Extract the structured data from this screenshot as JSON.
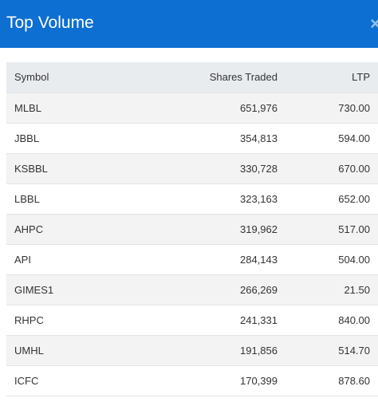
{
  "header": {
    "title": "Top Volume",
    "close_label": "×"
  },
  "table": {
    "columns": [
      "Symbol",
      "Shares Traded",
      "LTP"
    ],
    "rows": [
      {
        "symbol": "MLBL",
        "shares": "651,976",
        "ltp": "730.00"
      },
      {
        "symbol": "JBBL",
        "shares": "354,813",
        "ltp": "594.00"
      },
      {
        "symbol": "KSBBL",
        "shares": "330,728",
        "ltp": "670.00"
      },
      {
        "symbol": "LBBL",
        "shares": "323,163",
        "ltp": "652.00"
      },
      {
        "symbol": "AHPC",
        "shares": "319,962",
        "ltp": "517.00"
      },
      {
        "symbol": "API",
        "shares": "284,143",
        "ltp": "504.00"
      },
      {
        "symbol": "GIMES1",
        "shares": "266,269",
        "ltp": "21.50"
      },
      {
        "symbol": "RHPC",
        "shares": "241,331",
        "ltp": "840.00"
      },
      {
        "symbol": "UMHL",
        "shares": "191,856",
        "ltp": "514.70"
      },
      {
        "symbol": "ICFC",
        "shares": "170,399",
        "ltp": "878.60"
      }
    ]
  },
  "colors": {
    "header_bg": "#0d6fd2",
    "header_text": "#ffffff",
    "row_odd": "#f3f3f3",
    "row_even": "#ffffff",
    "table_head_bg": "#e9ecef"
  }
}
